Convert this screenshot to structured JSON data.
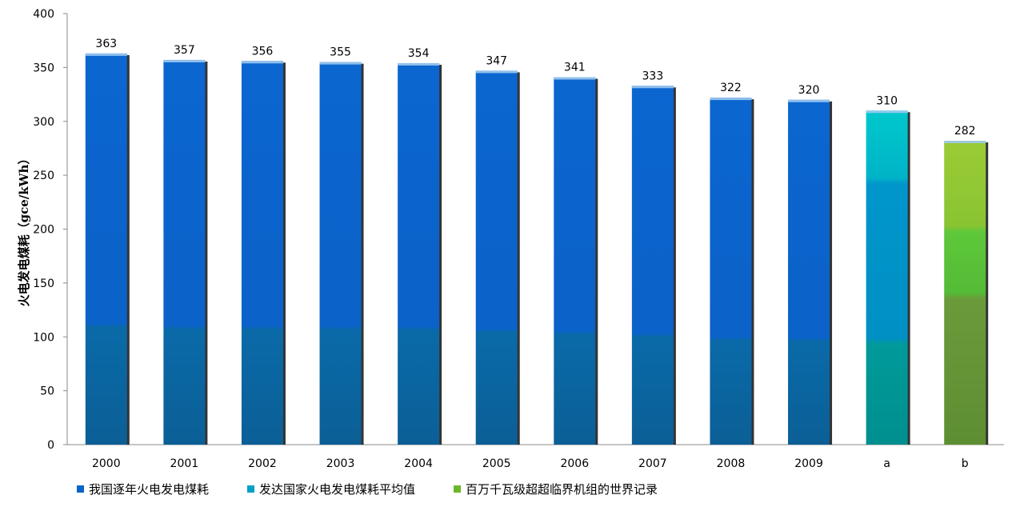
{
  "chart_data": {
    "type": "bar",
    "categories": [
      "2000",
      "2001",
      "2002",
      "2003",
      "2004",
      "2005",
      "2006",
      "2007",
      "2008",
      "2009",
      "a",
      "b"
    ],
    "values": [
      363,
      357,
      356,
      355,
      354,
      347,
      341,
      333,
      322,
      320,
      310,
      282
    ],
    "bar_series": [
      0,
      0,
      0,
      0,
      0,
      0,
      0,
      0,
      0,
      0,
      1,
      2
    ],
    "series": [
      {
        "name": "我国逐年火电发电煤耗",
        "color": "#0a64c8"
      },
      {
        "name": "发达国家火电发电煤耗平均值",
        "color": "#00a0c8"
      },
      {
        "name": "百万千瓦级超超临界机组的世界记录",
        "color": "#6ab82a"
      }
    ],
    "ylabel": "火电发电煤耗（gce/kWh）",
    "xlabel": "",
    "ylim": [
      0,
      400
    ],
    "yticks": [
      0,
      50,
      100,
      150,
      200,
      250,
      300,
      350,
      400
    ],
    "grid": false,
    "legend_position": "bottom-left"
  }
}
